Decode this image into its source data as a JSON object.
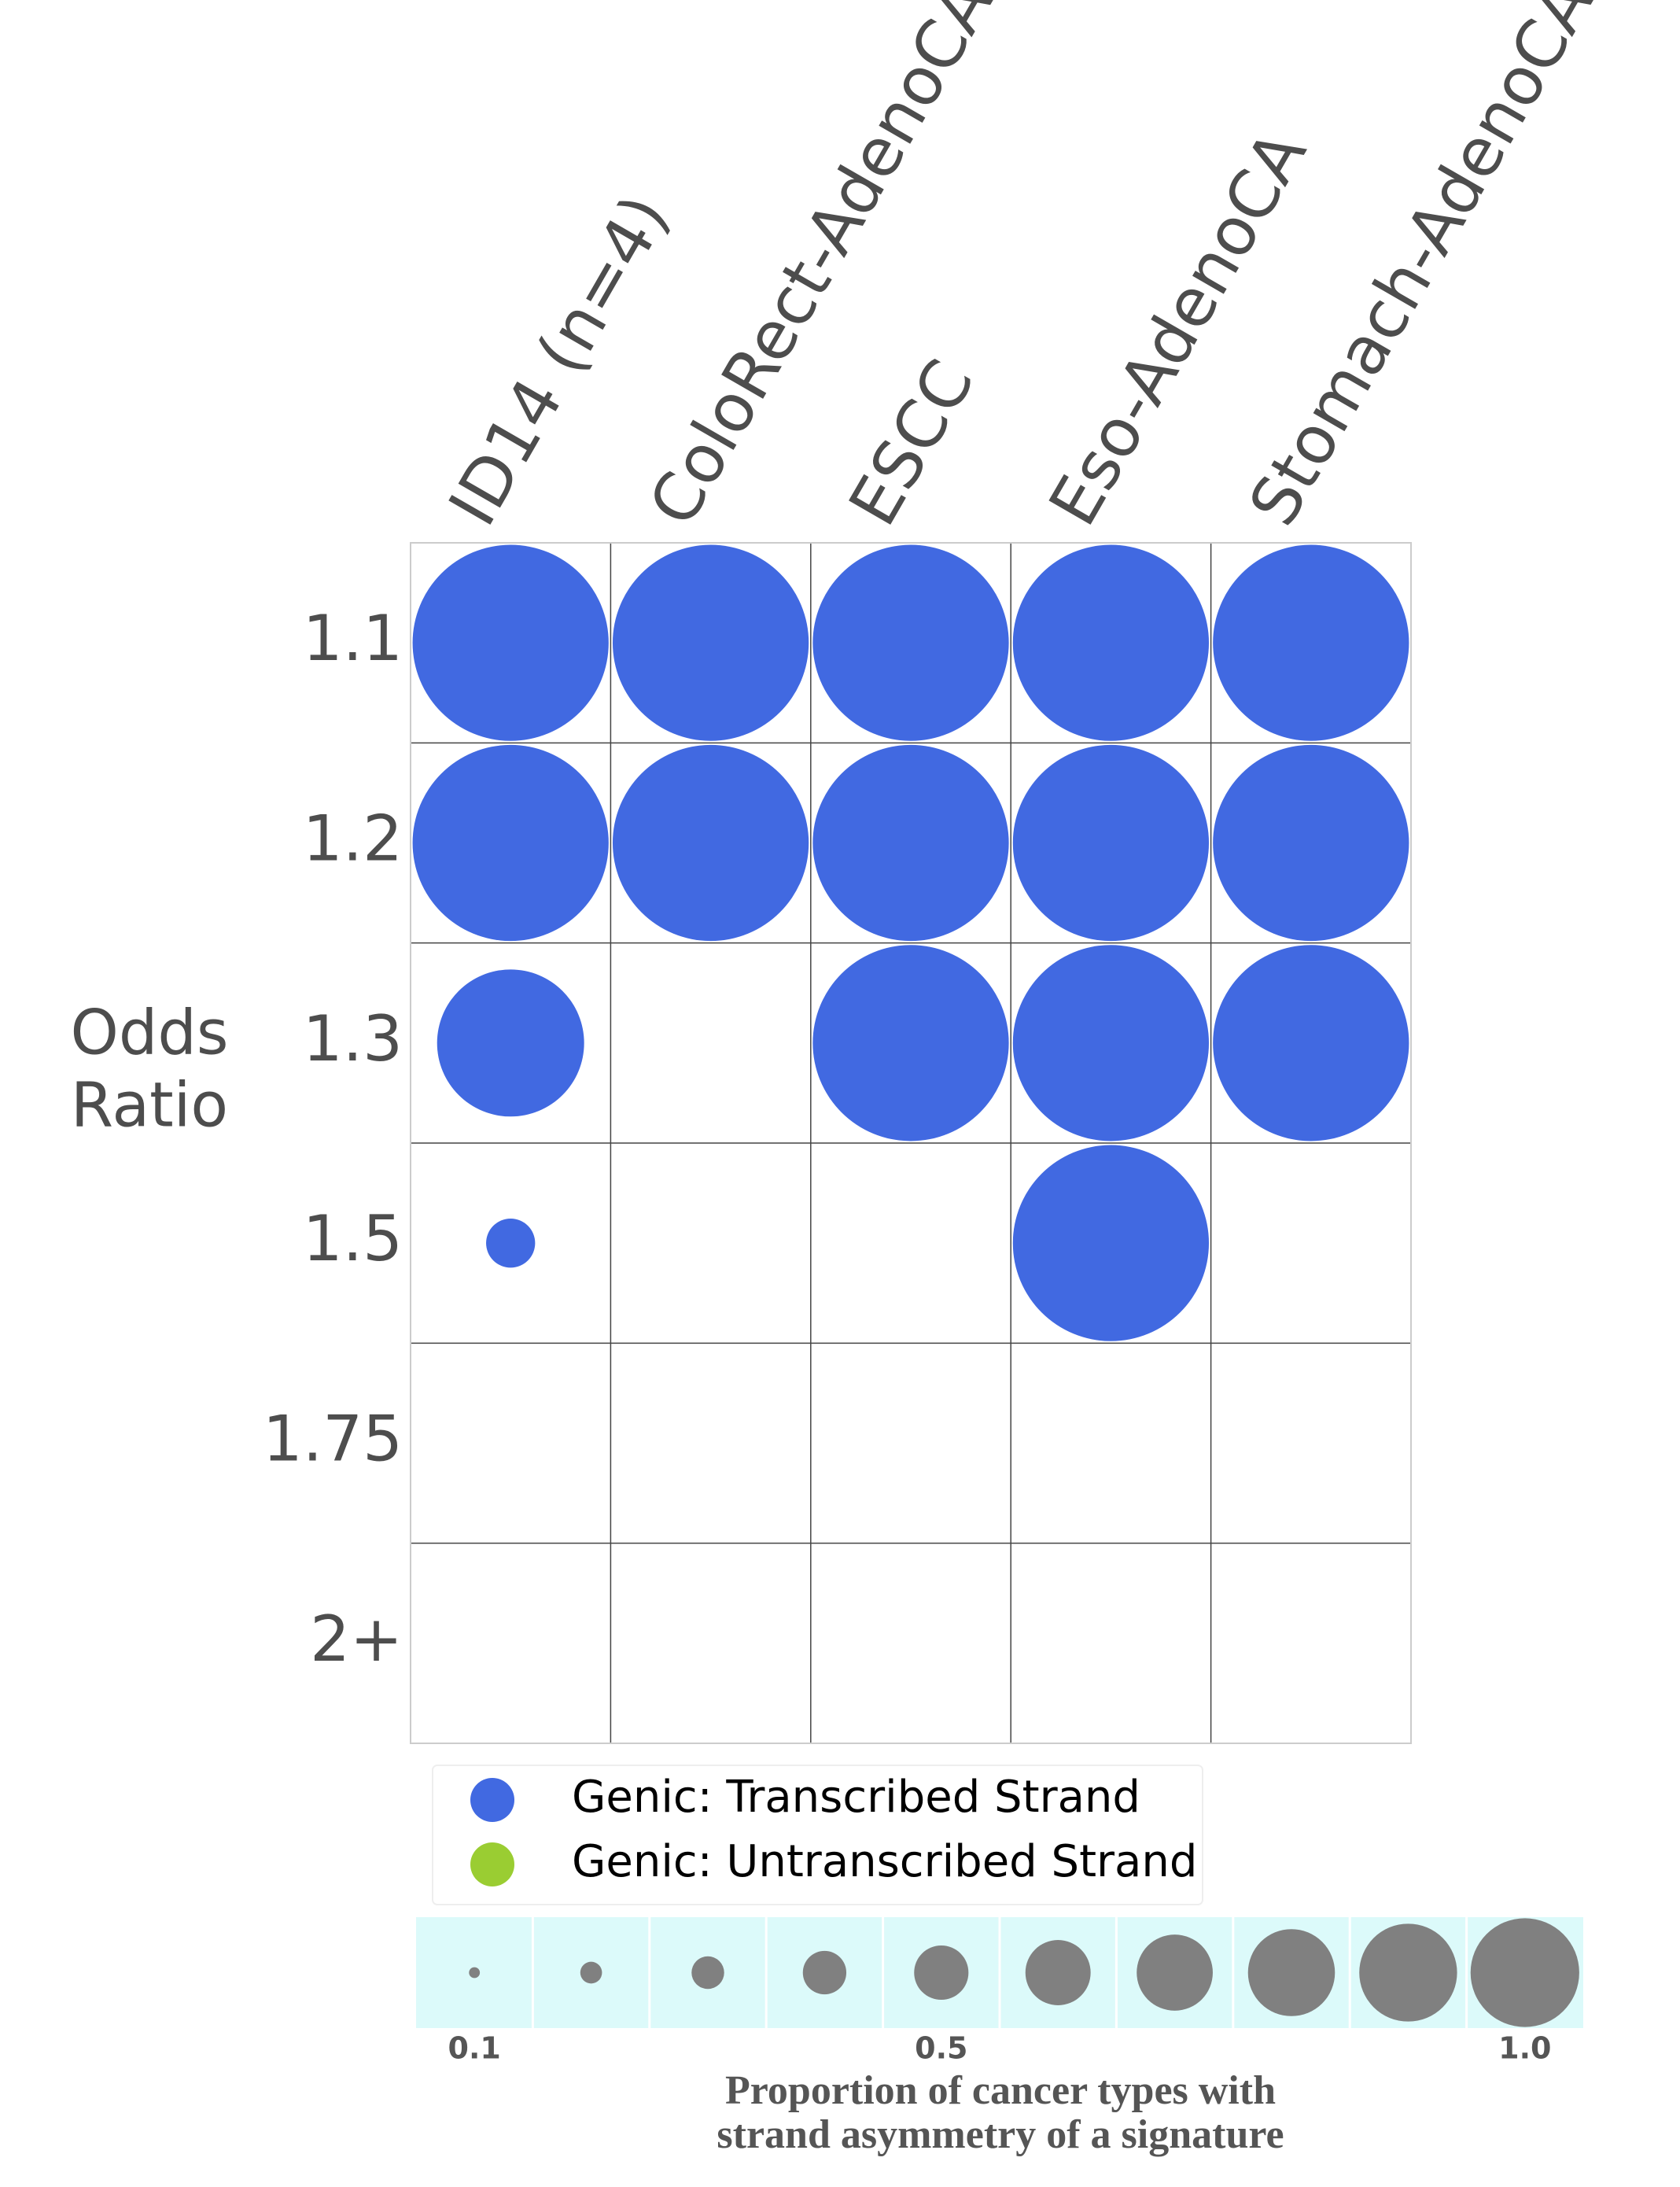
{
  "chart_data": {
    "type": "bubble-grid",
    "columns": [
      "ID14 (n=4)",
      "ColoRect-AdenoCA",
      "ESCC",
      "Eso-AdenoCA",
      "Stomach-AdenoCA"
    ],
    "rows": [
      "1.1",
      "1.2",
      "1.3",
      "1.5",
      "1.75",
      "2+"
    ],
    "ylabel_lines": [
      "Odds",
      "Ratio"
    ],
    "series": [
      {
        "name": "Genic: Transcribed Strand",
        "color": "#4169e1",
        "values": [
          [
            1.0,
            1.0,
            1.0,
            1.0,
            1.0
          ],
          [
            1.0,
            1.0,
            1.0,
            1.0,
            1.0
          ],
          [
            0.75,
            null,
            1.0,
            1.0,
            1.0
          ],
          [
            0.25,
            null,
            null,
            1.0,
            null
          ],
          [
            null,
            null,
            null,
            null,
            null
          ],
          [
            null,
            null,
            null,
            null,
            null
          ]
        ]
      },
      {
        "name": "Genic: Untranscribed Strand",
        "color": "#9acd32",
        "values": [
          [
            null,
            null,
            null,
            null,
            null
          ],
          [
            null,
            null,
            null,
            null,
            null
          ],
          [
            null,
            null,
            null,
            null,
            null
          ],
          [
            null,
            null,
            null,
            null,
            null
          ],
          [
            null,
            null,
            null,
            null,
            null
          ],
          [
            null,
            null,
            null,
            null,
            null
          ]
        ]
      }
    ],
    "size_legend": {
      "values": [
        0.1,
        0.2,
        0.3,
        0.4,
        0.5,
        0.6,
        0.7,
        0.8,
        0.9,
        1.0
      ],
      "color": "#808080",
      "background": "#dcfafa",
      "ticks": [
        0.1,
        0.5,
        {
          "value": 1.0,
          "label": "1.0"
        }
      ],
      "title_lines": [
        "Proportion of cancer types with",
        "strand asymmetry of a signature"
      ]
    }
  }
}
